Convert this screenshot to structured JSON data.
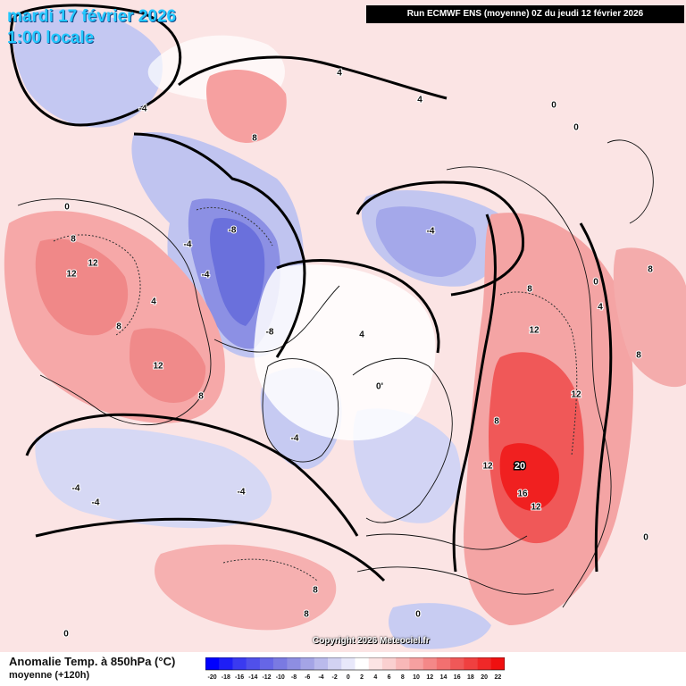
{
  "header": {
    "date": "mardi 17 février 2026",
    "time": "1:00 locale",
    "run": "Run ECMWF ENS (moyenne) 0Z du jeudi 12 février 2026"
  },
  "footer": {
    "copyright": "Copyright 2026 Meteociel.fr",
    "legend_title": "Anomalie Temp. à 850hPa (°C)",
    "legend_subtitle": "moyenne    (+120h)"
  },
  "legend": {
    "ticks": [
      "-20",
      "-18",
      "-16",
      "-14",
      "-12",
      "-10",
      "-8",
      "-6",
      "-4",
      "-2",
      "0",
      "2",
      "4",
      "6",
      "8",
      "10",
      "12",
      "14",
      "16",
      "18",
      "20",
      "22"
    ],
    "colors": [
      "#0000ff",
      "#1e1ef6",
      "#3a3af0",
      "#5050ea",
      "#6666e6",
      "#7a7ae2",
      "#8e8ee2",
      "#a4a4e6",
      "#babaec",
      "#d2d2f2",
      "#e8e8fa",
      "#ffffff",
      "#fce4e4",
      "#fad0d0",
      "#f8b8b8",
      "#f6a0a0",
      "#f48888",
      "#f27070",
      "#f05858",
      "#f04040",
      "#f02828",
      "#f01010"
    ]
  },
  "map_labels": [
    {
      "text": "4"
    },
    {
      "text": "8"
    },
    {
      "text": "4"
    },
    {
      "text": "0"
    },
    {
      "text": "0"
    },
    {
      "text": "-4"
    },
    {
      "text": "0"
    },
    {
      "text": "8"
    },
    {
      "text": "12"
    },
    {
      "text": "12"
    },
    {
      "text": "4"
    },
    {
      "text": "8"
    },
    {
      "text": "12"
    },
    {
      "text": "8"
    },
    {
      "text": "-8"
    },
    {
      "text": "-4"
    },
    {
      "text": "-8"
    },
    {
      "text": "-4"
    },
    {
      "text": "4"
    },
    {
      "text": "0'"
    },
    {
      "text": "-4"
    },
    {
      "text": "-4"
    },
    {
      "text": "-4"
    },
    {
      "text": "-4"
    },
    {
      "text": "-4"
    },
    {
      "text": "0"
    },
    {
      "text": "8"
    },
    {
      "text": "8"
    },
    {
      "text": "0"
    },
    {
      "text": "8"
    },
    {
      "text": "8"
    },
    {
      "text": "12"
    },
    {
      "text": "12"
    },
    {
      "text": "12"
    },
    {
      "text": "20"
    },
    {
      "text": "16"
    },
    {
      "text": "12"
    },
    {
      "text": "8"
    },
    {
      "text": "0"
    },
    {
      "text": "4"
    },
    {
      "text": "0"
    },
    {
      "text": "8"
    }
  ]
}
